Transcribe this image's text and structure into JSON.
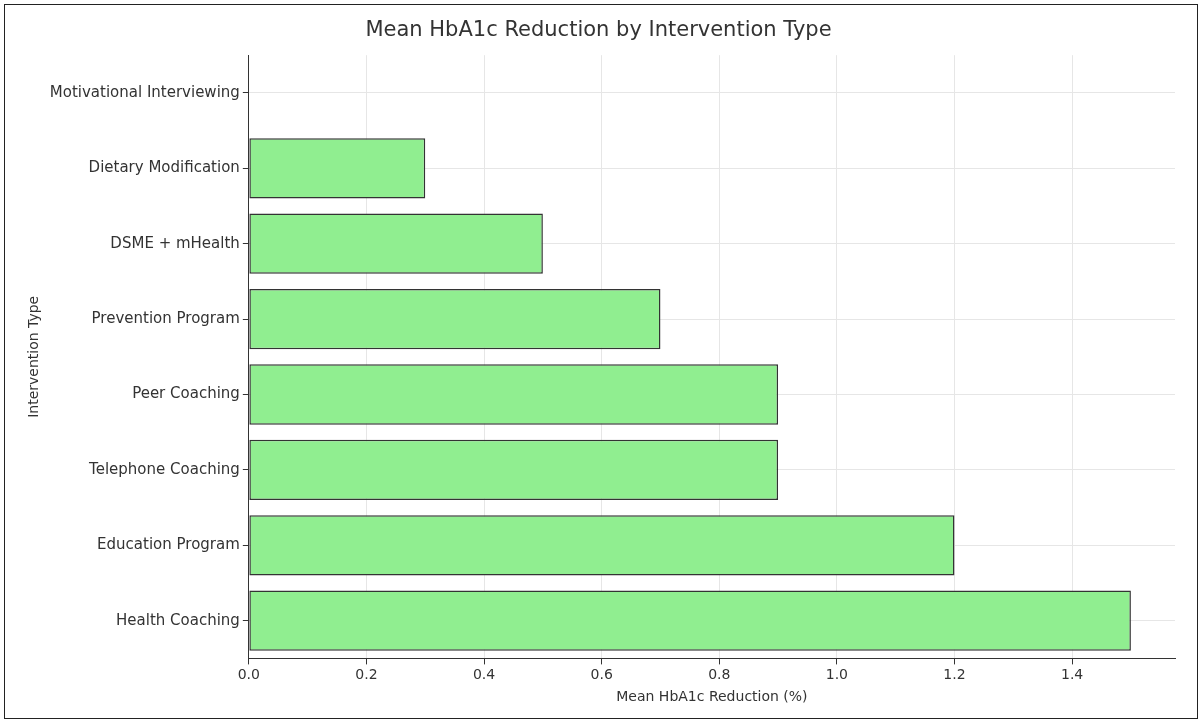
{
  "chart_data": {
    "type": "bar",
    "orientation": "horizontal",
    "title": "Mean HbA1c Reduction by Intervention Type",
    "xlabel": "Mean HbA1c Reduction (%)",
    "ylabel": "Intervention Type",
    "categories": [
      "Motivational Interviewing",
      "Dietary Modification",
      "DSME + mHealth",
      "Prevention Program",
      "Peer Coaching",
      "Telephone Coaching",
      "Education Program",
      "Health Coaching"
    ],
    "values": [
      0,
      0.3,
      0.5,
      0.7,
      0.9,
      0.9,
      1.2,
      1.5
    ],
    "color": "#90ee90",
    "xlim": [
      0,
      1.575
    ],
    "xticks": [
      {
        "value": 0,
        "label": "0.0"
      },
      {
        "value": 0.2,
        "label": "0.2"
      },
      {
        "value": 0.4,
        "label": "0.4"
      },
      {
        "value": 0.6,
        "label": "0.6"
      },
      {
        "value": 0.8,
        "label": "0.8"
      },
      {
        "value": 1,
        "label": "1.0"
      },
      {
        "value": 1.2,
        "label": "1.2"
      },
      {
        "value": 1.4,
        "label": "1.4"
      }
    ],
    "grid": true
  }
}
